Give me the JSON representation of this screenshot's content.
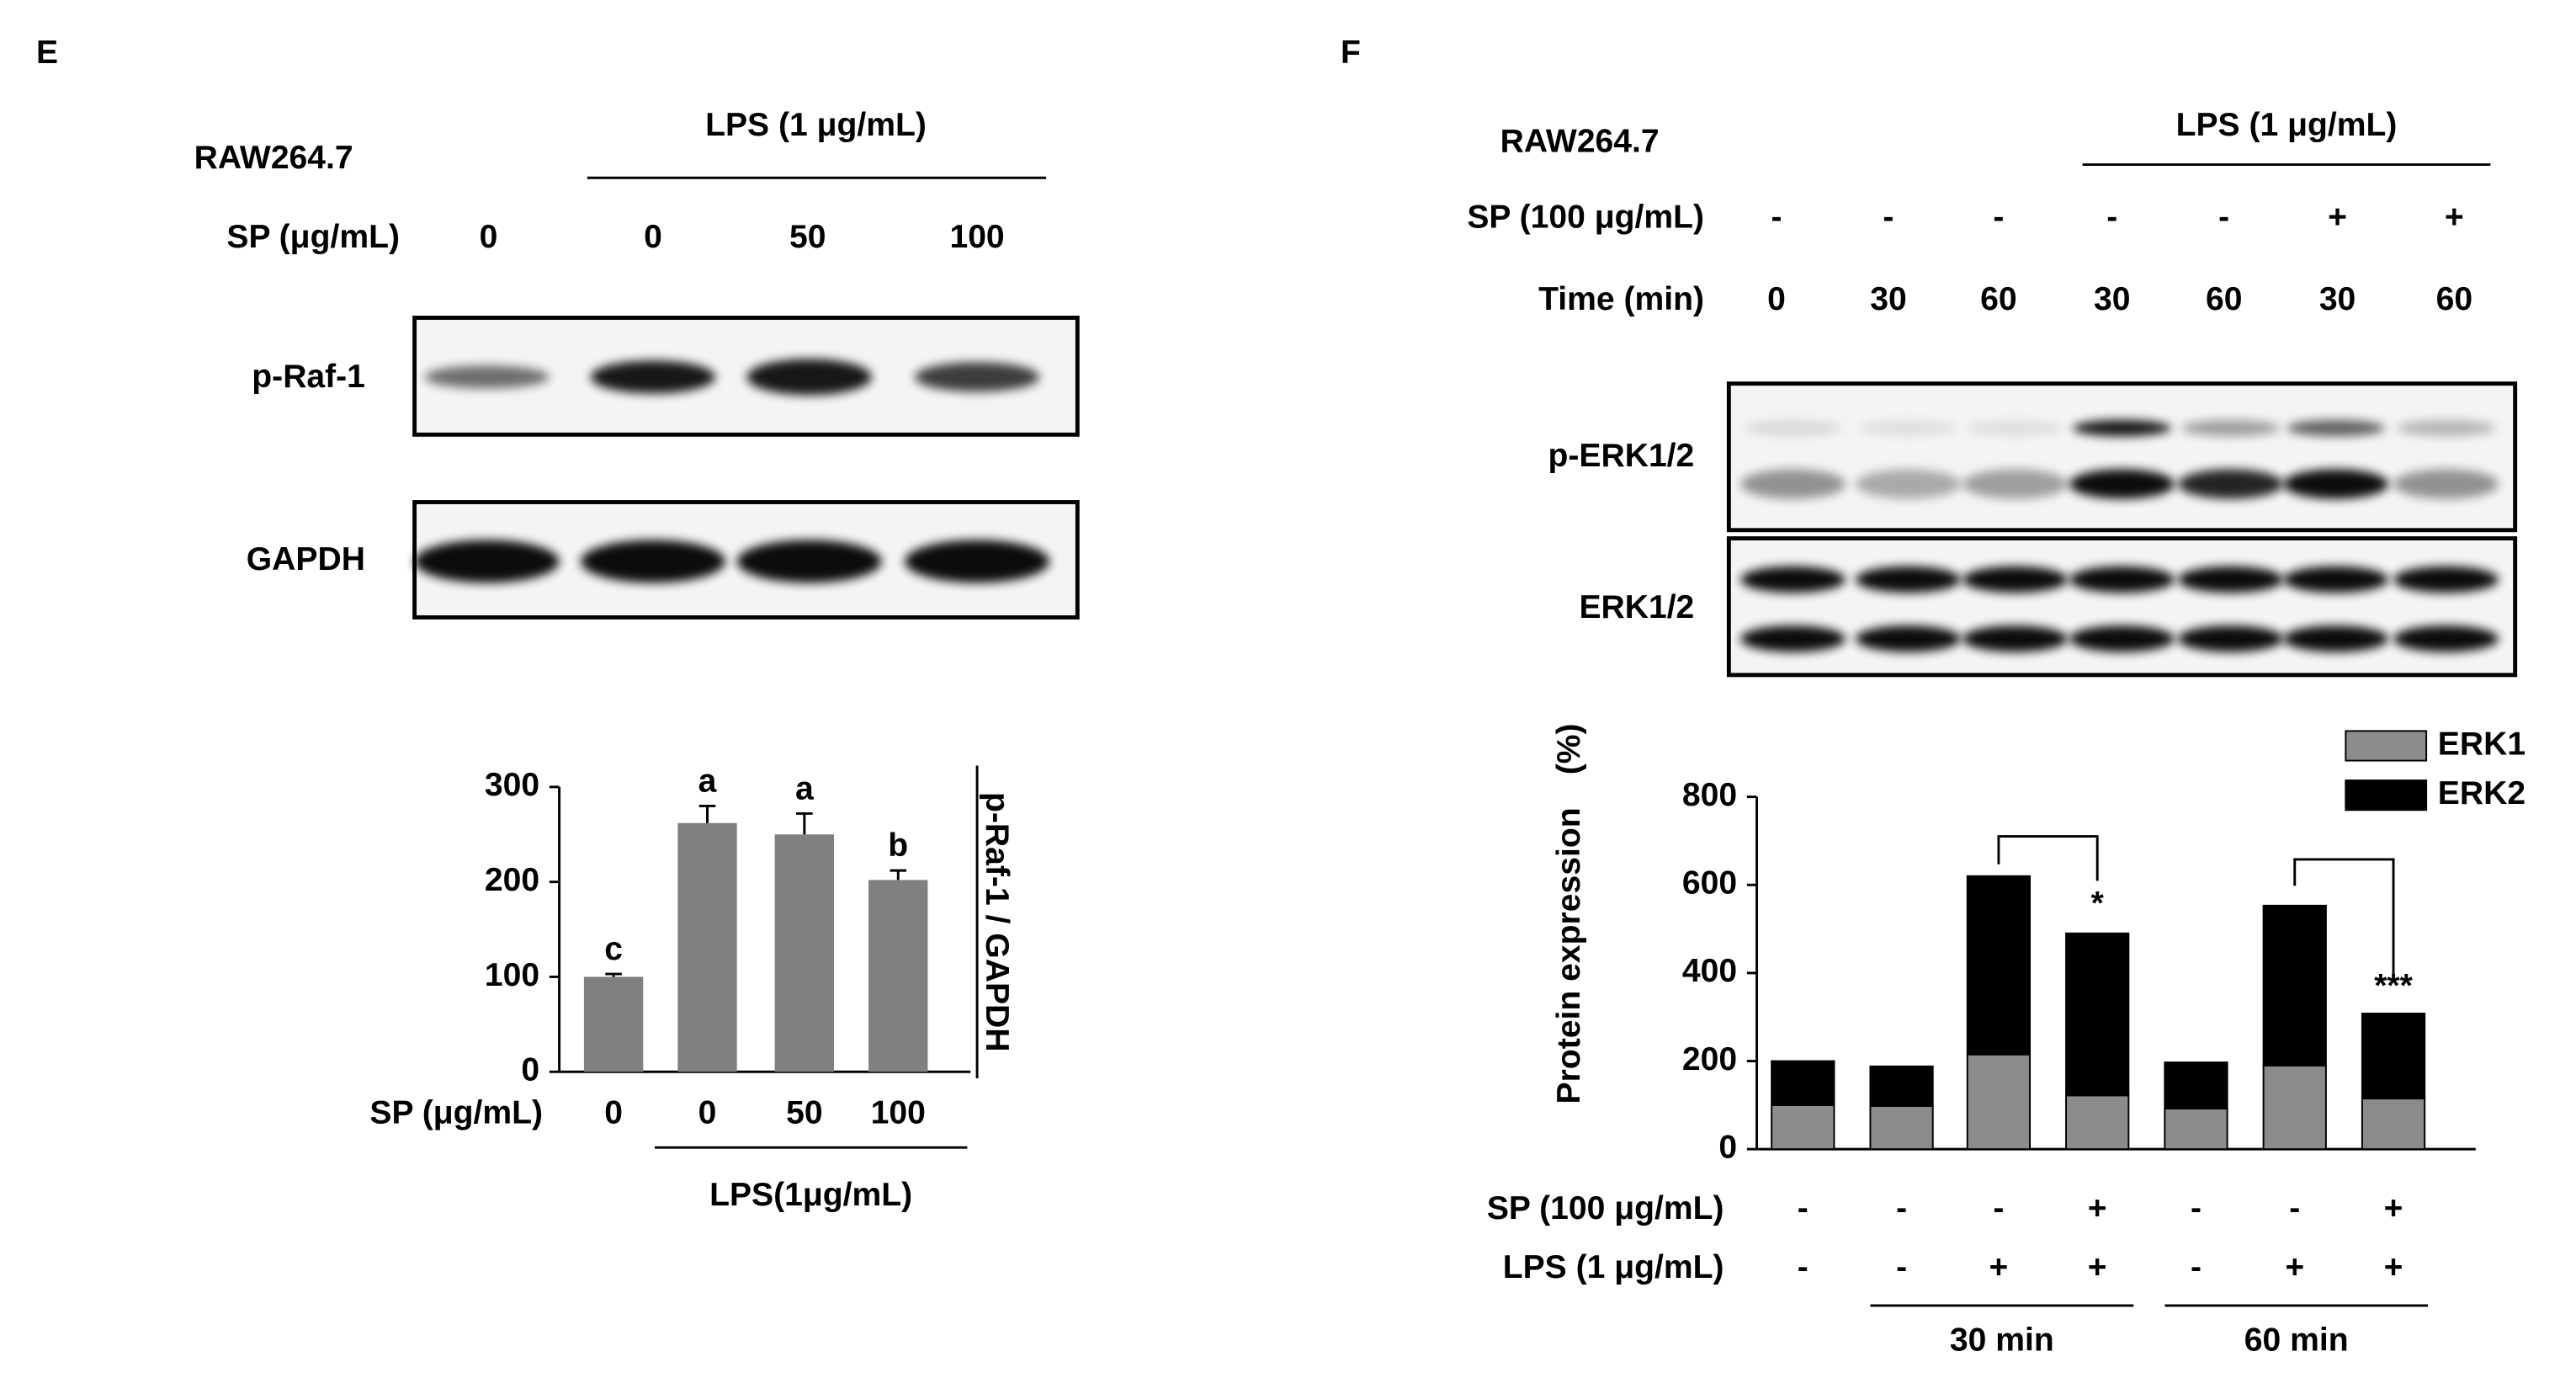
{
  "panels": [
    {
      "label": "E",
      "cell_line": "RAW264.7",
      "treatment": "LPS (1 μg/mL)",
      "row_label": "SP (μg/mL)",
      "doses": [
        "0",
        "0",
        "50",
        "100"
      ],
      "blots": [
        "p-Raf-1",
        "GAPDH"
      ]
    },
    {
      "label": "F",
      "cell_line": "RAW264.7",
      "treatment": "LPS (1 μg/mL)",
      "rows": [
        {
          "label": "SP (100 μg/mL)",
          "cells": [
            "-",
            "-",
            "-",
            "-",
            "-",
            "+",
            "+"
          ]
        },
        {
          "label": "Time (min)",
          "cells": [
            "0",
            "30",
            "60",
            "30",
            "60",
            "30",
            "60"
          ]
        }
      ],
      "blots": [
        "p-ERK1/2",
        "ERK1/2"
      ]
    }
  ],
  "chart_data": [
    {
      "type": "bar",
      "ylabel": "p-Raf-1 / GAPDH",
      "x_row_label": "SP (μg/mL)",
      "categories": [
        "0",
        "0",
        "50",
        "100"
      ],
      "group_label": "LPS(1μg/mL)",
      "values": [
        100,
        262,
        250,
        202
      ],
      "errors": [
        3,
        18,
        22,
        10
      ],
      "annotations": [
        "c",
        "a",
        "a",
        "b"
      ],
      "ylim": [
        0,
        300
      ],
      "yticks": [
        0,
        100,
        200,
        300
      ],
      "color": "#808080"
    },
    {
      "type": "stacked_bar",
      "ylabel": "Protein expression　(%)",
      "series": [
        {
          "name": "ERK1",
          "color": "#8c8c8c",
          "values": [
            100,
            98,
            215,
            122,
            92,
            190,
            115
          ]
        },
        {
          "name": "ERK2",
          "color": "#000000",
          "values": [
            100,
            90,
            405,
            368,
            105,
            363,
            193
          ]
        }
      ],
      "rows": [
        {
          "label": "SP (100 μg/mL)",
          "cells": [
            "-",
            "-",
            "-",
            "+",
            "-",
            "-",
            "+"
          ]
        },
        {
          "label": "LPS (1 μg/mL)",
          "cells": [
            "-",
            "-",
            "+",
            "+",
            "-",
            "+",
            "+"
          ]
        }
      ],
      "groups": [
        "30 min",
        "60 min"
      ],
      "significance": [
        "*",
        "***"
      ],
      "ylim": [
        0,
        800
      ],
      "yticks": [
        0,
        200,
        400,
        600,
        800
      ],
      "legend": "upper right"
    }
  ]
}
